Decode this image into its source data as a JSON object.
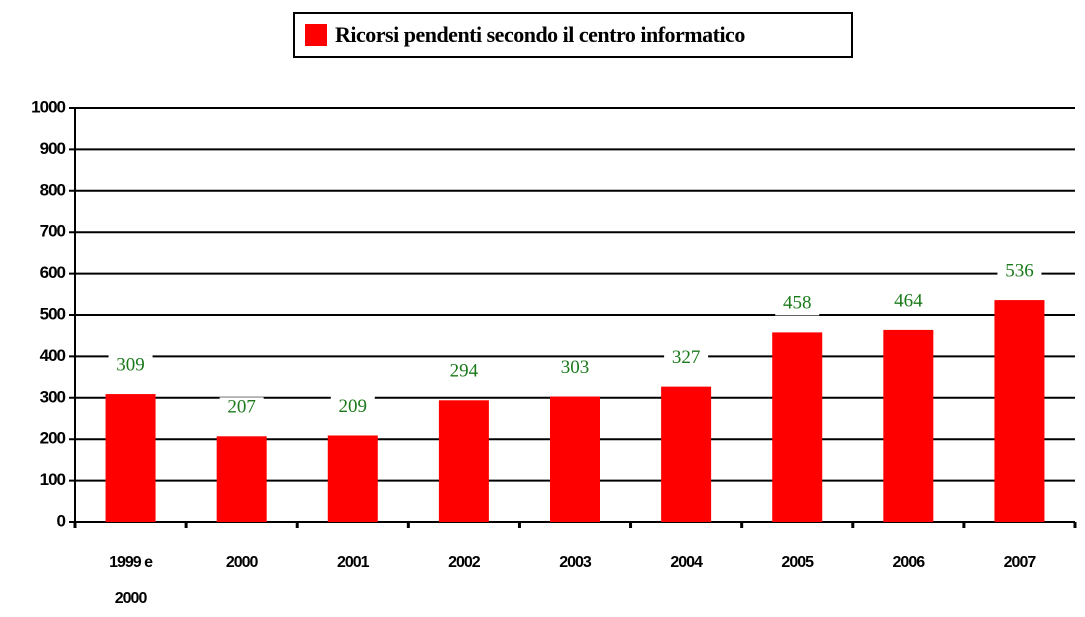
{
  "chart_data": {
    "type": "bar",
    "categories": [
      "1999 e 2000",
      "2000",
      "2001",
      "2002",
      "2003",
      "2004",
      "2005",
      "2006",
      "2007"
    ],
    "series": [
      {
        "name": "Ricorsi pendenti secondo il centro informatico",
        "color": "#ff0000",
        "values": [
          309,
          207,
          209,
          294,
          303,
          327,
          458,
          464,
          536
        ]
      }
    ],
    "ylim": [
      0,
      1000
    ],
    "yticks": [
      0,
      100,
      200,
      300,
      400,
      500,
      600,
      700,
      800,
      900,
      1000
    ],
    "grid": true
  }
}
